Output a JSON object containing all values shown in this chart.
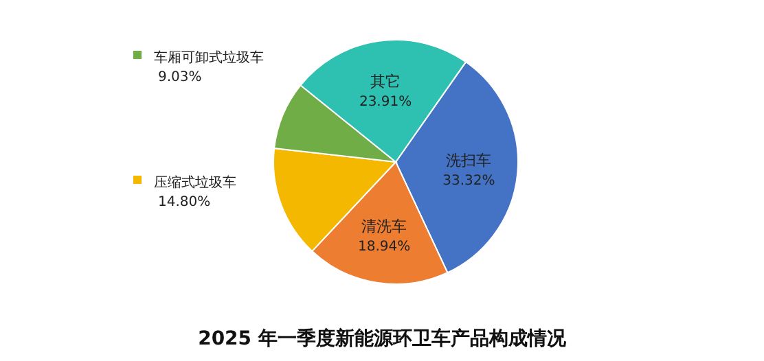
{
  "chart_data": {
    "type": "pie",
    "title": "2025 年一季度新能源环卫车产品构成情况",
    "categories": [
      "洗扫车",
      "清洗车",
      "压缩式垃圾车",
      "车厢可卸式垃圾车",
      "其它"
    ],
    "values": [
      33.32,
      18.94,
      14.8,
      9.03,
      23.91
    ],
    "colors": [
      "#4472c4",
      "#ed7d31",
      "#f5b800",
      "#70ad47",
      "#2ec0b0"
    ],
    "value_labels": [
      "33.32%",
      "18.94%",
      "14.80%",
      "9.03%",
      "23.91%"
    ],
    "legend": "left"
  }
}
